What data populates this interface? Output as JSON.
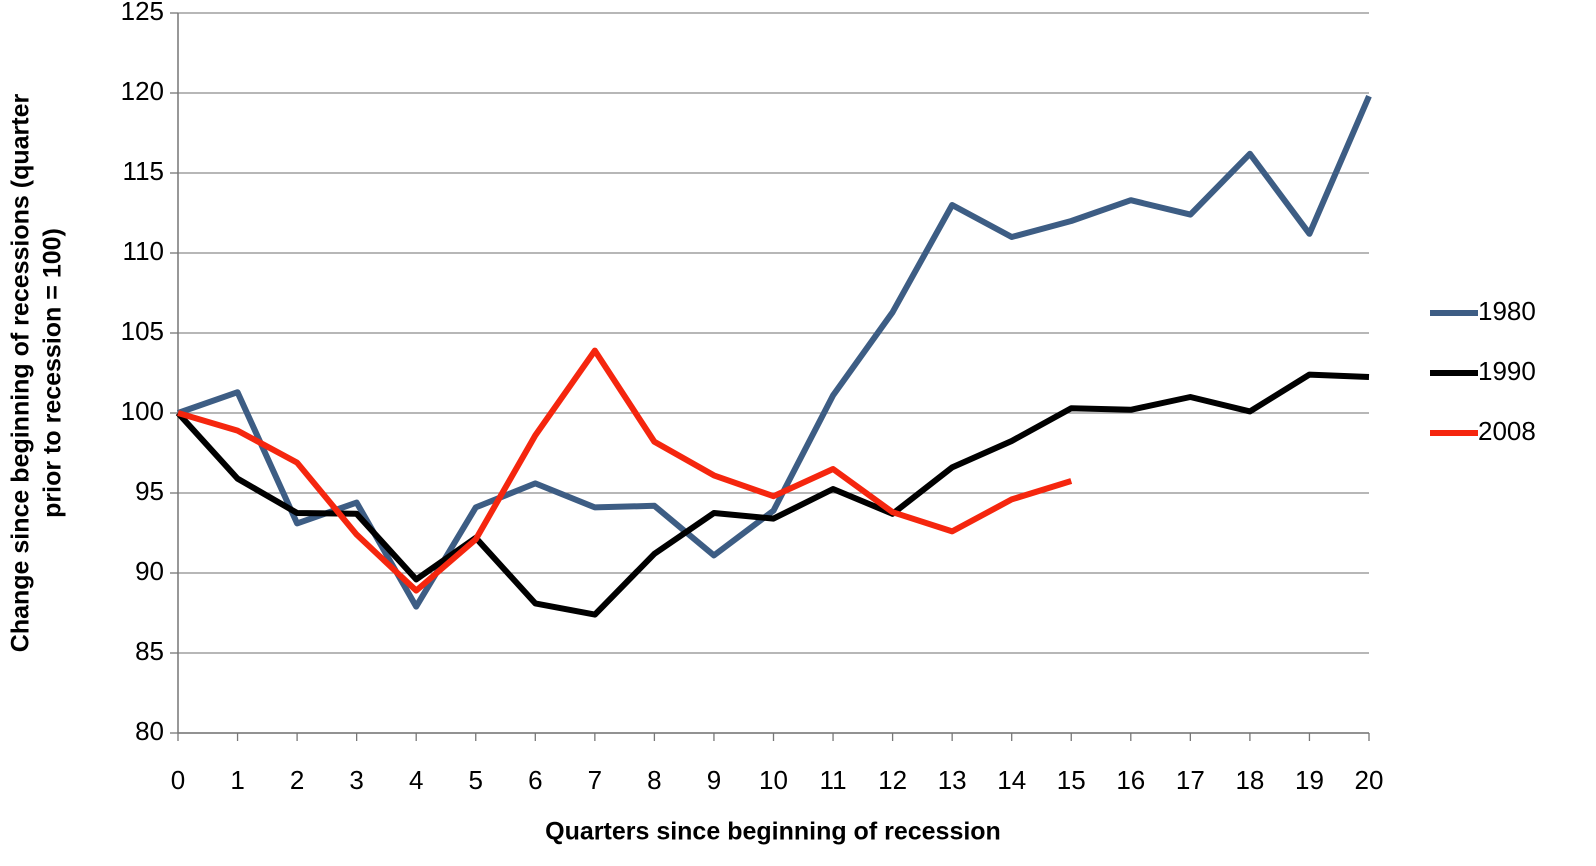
{
  "chart_data": {
    "type": "line",
    "x_label": "Quarters since beginning of recession",
    "y_label": [
      "Change since beginning of recessions (quarter",
      "prior to recession = 100)"
    ],
    "x": [
      0,
      1,
      2,
      3,
      4,
      5,
      6,
      7,
      8,
      9,
      10,
      11,
      12,
      13,
      14,
      15,
      16,
      17,
      18,
      19,
      20
    ],
    "xlim": [
      0,
      20
    ],
    "xticks": [
      0,
      1,
      2,
      3,
      4,
      5,
      6,
      7,
      8,
      9,
      10,
      11,
      12,
      13,
      14,
      15,
      16,
      17,
      18,
      19,
      20
    ],
    "ylim": [
      80,
      125
    ],
    "yticks": [
      80,
      85,
      90,
      95,
      100,
      105,
      110,
      115,
      120,
      125
    ],
    "grid": true,
    "legend": "right",
    "series": [
      {
        "name": "1980",
        "color": "#3d5d84",
        "values": [
          100,
          101.3,
          93.1,
          94.4,
          87.9,
          94.1,
          95.6,
          94.1,
          94.2,
          91.1,
          93.9,
          101.1,
          106.3,
          113.0,
          111.0,
          112.0,
          113.3,
          112.4,
          116.2,
          111.2,
          119.8
        ]
      },
      {
        "name": "1990",
        "color": "#000000",
        "values": [
          100,
          95.9,
          93.75,
          93.7,
          89.6,
          92.2,
          88.1,
          87.4,
          91.2,
          93.75,
          93.4,
          95.25,
          93.7,
          96.6,
          98.25,
          100.3,
          100.2,
          101.0,
          100.1,
          102.4,
          102.25
        ]
      },
      {
        "name": "2008",
        "color": "#f5260e",
        "values": [
          100,
          98.9,
          96.9,
          92.4,
          88.9,
          92.1,
          98.6,
          103.9,
          98.2,
          96.1,
          94.8,
          96.5,
          93.8,
          92.6,
          94.6,
          95.75,
          null,
          null,
          null,
          null,
          null
        ]
      }
    ]
  }
}
